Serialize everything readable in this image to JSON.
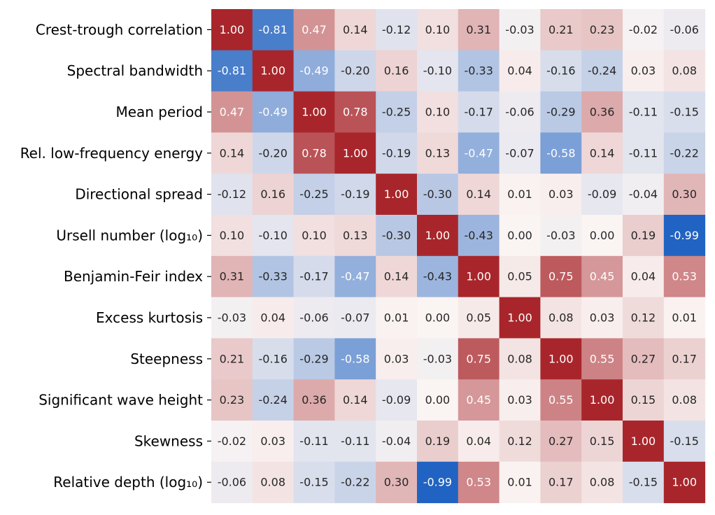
{
  "chart_data": {
    "type": "heatmap",
    "title": "",
    "xlabel": "",
    "ylabel": "",
    "row_labels": [
      "Crest-trough correlation",
      "Spectral bandwidth",
      "Mean period",
      "Rel. low-frequency energy",
      "Directional spread",
      "Ursell number (log₁₀)",
      "Benjamin-Feir index",
      "Excess kurtosis",
      "Steepness",
      "Significant wave height",
      "Skewness",
      "Relative depth (log₁₀)"
    ],
    "column_labels": [],
    "values": [
      [
        1.0,
        -0.81,
        0.47,
        0.14,
        -0.12,
        0.1,
        0.31,
        -0.03,
        0.21,
        0.23,
        -0.02,
        -0.06
      ],
      [
        -0.81,
        1.0,
        -0.49,
        -0.2,
        0.16,
        -0.1,
        -0.33,
        0.04,
        -0.16,
        -0.24,
        0.03,
        0.08
      ],
      [
        0.47,
        -0.49,
        1.0,
        0.78,
        -0.25,
        0.1,
        -0.17,
        -0.06,
        -0.29,
        0.36,
        -0.11,
        -0.15
      ],
      [
        0.14,
        -0.2,
        0.78,
        1.0,
        -0.19,
        0.13,
        -0.47,
        -0.07,
        -0.58,
        0.14,
        -0.11,
        -0.22
      ],
      [
        -0.12,
        0.16,
        -0.25,
        -0.19,
        1.0,
        -0.3,
        0.14,
        0.01,
        0.03,
        -0.09,
        -0.04,
        0.3
      ],
      [
        0.1,
        -0.1,
        0.1,
        0.13,
        -0.3,
        1.0,
        -0.43,
        -0.0,
        -0.03,
        -0.0,
        0.19,
        -0.99
      ],
      [
        0.31,
        -0.33,
        -0.17,
        -0.47,
        0.14,
        -0.43,
        1.0,
        0.05,
        0.75,
        0.45,
        0.04,
        0.53
      ],
      [
        -0.03,
        0.04,
        -0.06,
        -0.07,
        0.01,
        -0.0,
        0.05,
        1.0,
        0.08,
        0.03,
        0.12,
        0.01
      ],
      [
        0.21,
        -0.16,
        -0.29,
        -0.58,
        0.03,
        -0.03,
        0.75,
        0.08,
        1.0,
        0.55,
        0.27,
        0.17
      ],
      [
        0.23,
        -0.24,
        0.36,
        0.14,
        -0.09,
        -0.0,
        0.45,
        0.03,
        0.55,
        1.0,
        0.15,
        0.08
      ],
      [
        -0.02,
        0.03,
        -0.11,
        -0.11,
        -0.04,
        0.19,
        0.04,
        0.12,
        0.27,
        0.15,
        1.0,
        -0.15
      ],
      [
        -0.06,
        0.08,
        -0.15,
        -0.22,
        0.3,
        -0.99,
        0.53,
        0.01,
        0.17,
        0.08,
        -0.15,
        1.0
      ]
    ],
    "value_range": [
      -1,
      1
    ],
    "colormap": {
      "negative": "#1f62c2",
      "center": "#faf4f3",
      "positive": "#a8262b"
    },
    "annotations": "two-decimal values printed in each cell",
    "colorbar": false,
    "grid": false
  }
}
